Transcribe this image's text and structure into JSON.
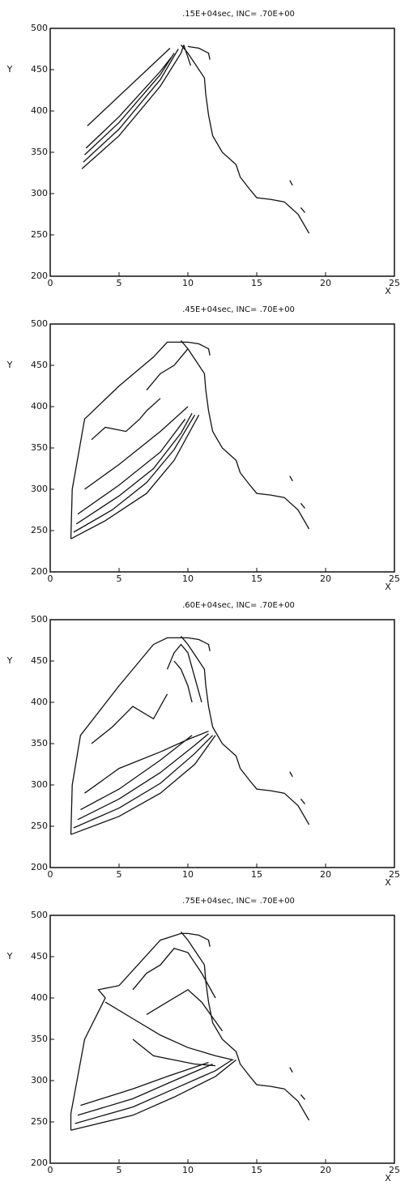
{
  "chart_data": [
    {
      "type": "contour",
      "title": ".15E+04sec,  INC= .70E+00",
      "xlabel": "X",
      "ylabel": "Y",
      "xlim": [
        0,
        25
      ],
      "ylim": [
        200,
        500
      ],
      "xticks": [
        0,
        5,
        10,
        15,
        20,
        25
      ],
      "yticks": [
        200,
        250,
        300,
        350,
        400,
        450,
        500
      ],
      "color": "#111111",
      "lines": [
        {
          "x": [
            9.5,
            10,
            10.6,
            11.2,
            11.3,
            11.5,
            11.8,
            12.5,
            13.5,
            13.8,
            14.5,
            15,
            16,
            17,
            18,
            18.8
          ],
          "y": [
            480,
            470,
            455,
            440,
            420,
            395,
            370,
            350,
            335,
            320,
            305,
            295,
            293,
            290,
            275,
            252
          ]
        },
        {
          "x": [
            10,
            10.8,
            11.5,
            11.6
          ],
          "y": [
            478,
            476,
            470,
            462
          ]
        },
        {
          "x": [
            17.4,
            17.6
          ],
          "y": [
            316,
            310
          ]
        },
        {
          "x": [
            18.2,
            18.5
          ],
          "y": [
            283,
            277
          ]
        },
        {
          "x": [
            2.7,
            8.7
          ],
          "y": [
            382,
            476
          ]
        },
        {
          "x": [
            2.3,
            5,
            8,
            9.5,
            9.7
          ],
          "y": [
            330,
            370,
            430,
            470,
            480
          ]
        },
        {
          "x": [
            2.4,
            5,
            8,
            9.3
          ],
          "y": [
            338,
            378,
            438,
            475
          ]
        },
        {
          "x": [
            2.5,
            5,
            8,
            9
          ],
          "y": [
            347,
            386,
            444,
            470
          ]
        },
        {
          "x": [
            2.6,
            5,
            8,
            8.8
          ],
          "y": [
            355,
            393,
            448,
            465
          ]
        },
        {
          "x": [
            9.7,
            10,
            10.2
          ],
          "y": [
            480,
            465,
            455
          ]
        }
      ]
    },
    {
      "type": "contour",
      "title": ".45E+04sec,  INC= .70E+00",
      "xlabel": "X",
      "ylabel": "Y",
      "xlim": [
        0,
        25
      ],
      "ylim": [
        200,
        500
      ],
      "xticks": [
        0,
        5,
        10,
        15,
        20,
        25
      ],
      "yticks": [
        200,
        250,
        300,
        350,
        400,
        450,
        500
      ],
      "color": "#111111",
      "lines": [
        {
          "x": [
            9.5,
            10,
            10.6,
            11.2,
            11.3,
            11.5,
            11.8,
            12.5,
            13.5,
            13.8,
            14.5,
            15,
            16,
            17,
            18,
            18.8
          ],
          "y": [
            480,
            470,
            455,
            440,
            420,
            395,
            370,
            350,
            335,
            320,
            305,
            295,
            293,
            290,
            275,
            252
          ]
        },
        {
          "x": [
            10,
            10.8,
            11.5,
            11.6
          ],
          "y": [
            478,
            476,
            470,
            462
          ]
        },
        {
          "x": [
            17.4,
            17.6
          ],
          "y": [
            316,
            310
          ]
        },
        {
          "x": [
            18.2,
            18.5
          ],
          "y": [
            283,
            277
          ]
        },
        {
          "x": [
            1.5,
            1.6,
            2.5,
            5,
            7.5,
            8.5,
            10
          ],
          "y": [
            240,
            300,
            385,
            425,
            460,
            478,
            478
          ]
        },
        {
          "x": [
            1.5,
            4,
            7,
            9,
            10.8
          ],
          "y": [
            240,
            262,
            295,
            335,
            390
          ]
        },
        {
          "x": [
            1.7,
            4.5,
            7,
            9,
            10.5
          ],
          "y": [
            248,
            275,
            308,
            348,
            390
          ]
        },
        {
          "x": [
            1.9,
            5,
            7.5,
            9.5,
            10.3
          ],
          "y": [
            258,
            292,
            325,
            368,
            392
          ]
        },
        {
          "x": [
            2,
            5,
            8,
            9.8
          ],
          "y": [
            270,
            305,
            345,
            385
          ]
        },
        {
          "x": [
            2.5,
            5,
            8,
            10
          ],
          "y": [
            300,
            330,
            370,
            400
          ]
        },
        {
          "x": [
            3,
            4,
            5.5,
            6.5,
            7,
            8
          ],
          "y": [
            360,
            375,
            370,
            385,
            395,
            410
          ]
        },
        {
          "x": [
            7,
            8,
            9,
            9.5,
            10
          ],
          "y": [
            420,
            440,
            450,
            460,
            470
          ]
        }
      ]
    },
    {
      "type": "contour",
      "title": ".60E+04sec,  INC= .70E+00",
      "xlabel": "X",
      "ylabel": "Y",
      "xlim": [
        0,
        25
      ],
      "ylim": [
        200,
        500
      ],
      "xticks": [
        0,
        5,
        10,
        15,
        20,
        25
      ],
      "yticks": [
        200,
        250,
        300,
        350,
        400,
        450,
        500
      ],
      "color": "#111111",
      "lines": [
        {
          "x": [
            9.5,
            10,
            10.6,
            11.2,
            11.3,
            11.5,
            11.8,
            12.5,
            13.5,
            13.8,
            14.5,
            15,
            16,
            17,
            18,
            18.8
          ],
          "y": [
            480,
            470,
            455,
            440,
            420,
            395,
            370,
            350,
            335,
            320,
            305,
            295,
            293,
            290,
            275,
            252
          ]
        },
        {
          "x": [
            10,
            10.8,
            11.5,
            11.6
          ],
          "y": [
            478,
            476,
            470,
            462
          ]
        },
        {
          "x": [
            17.4,
            17.6
          ],
          "y": [
            316,
            310
          ]
        },
        {
          "x": [
            18.2,
            18.5
          ],
          "y": [
            283,
            277
          ]
        },
        {
          "x": [
            1.5,
            1.6,
            2.2,
            5,
            7.5,
            8.5,
            10
          ],
          "y": [
            240,
            300,
            360,
            420,
            470,
            478,
            478
          ]
        },
        {
          "x": [
            1.5,
            5,
            8,
            10.5,
            12
          ],
          "y": [
            240,
            262,
            290,
            325,
            360
          ]
        },
        {
          "x": [
            1.7,
            5,
            8,
            10.5,
            11.8
          ],
          "y": [
            248,
            272,
            302,
            338,
            360
          ]
        },
        {
          "x": [
            2,
            5,
            8,
            10.5,
            11.5
          ],
          "y": [
            258,
            283,
            315,
            348,
            362
          ]
        },
        {
          "x": [
            2.2,
            5,
            8,
            10.3
          ],
          "y": [
            270,
            295,
            330,
            360
          ]
        },
        {
          "x": [
            2.5,
            5,
            8,
            10,
            11.5
          ],
          "y": [
            290,
            320,
            340,
            355,
            365
          ]
        },
        {
          "x": [
            3,
            4.5,
            6,
            7.5,
            8.5
          ],
          "y": [
            350,
            370,
            395,
            380,
            410
          ]
        },
        {
          "x": [
            8.5,
            9,
            9.5,
            10,
            10.5,
            11
          ],
          "y": [
            440,
            460,
            470,
            460,
            430,
            400
          ]
        },
        {
          "x": [
            9,
            9.5,
            10,
            10.3
          ],
          "y": [
            450,
            440,
            420,
            400
          ]
        }
      ]
    },
    {
      "type": "contour",
      "title": ".75E+04sec,  INC= .70E+00",
      "xlabel": "X",
      "ylabel": "Y",
      "xlim": [
        0,
        25
      ],
      "ylim": [
        200,
        500
      ],
      "xticks": [
        0,
        5,
        10,
        15,
        20,
        25
      ],
      "yticks": [
        200,
        250,
        300,
        350,
        400,
        450,
        500
      ],
      "color": "#111111",
      "lines": [
        {
          "x": [
            9.5,
            10,
            10.6,
            11.2,
            11.3,
            11.5,
            11.8,
            12.5,
            13.5,
            13.8,
            14.5,
            15,
            16,
            17,
            18,
            18.8
          ],
          "y": [
            480,
            470,
            455,
            440,
            420,
            395,
            370,
            350,
            335,
            320,
            305,
            295,
            293,
            290,
            275,
            252
          ]
        },
        {
          "x": [
            10,
            10.8,
            11.5,
            11.6
          ],
          "y": [
            478,
            476,
            470,
            462
          ]
        },
        {
          "x": [
            17.4,
            17.6
          ],
          "y": [
            316,
            310
          ]
        },
        {
          "x": [
            18.2,
            18.5
          ],
          "y": [
            283,
            277
          ]
        },
        {
          "x": [
            1.5,
            1.5,
            2.5,
            4,
            3.5,
            5,
            8,
            9.5,
            10
          ],
          "y": [
            240,
            260,
            350,
            400,
            410,
            415,
            470,
            478,
            478
          ]
        },
        {
          "x": [
            4,
            6,
            8,
            10,
            12,
            13.3
          ],
          "y": [
            395,
            375,
            355,
            340,
            330,
            325
          ]
        },
        {
          "x": [
            1.5,
            6,
            9,
            12,
            13.5
          ],
          "y": [
            240,
            258,
            280,
            305,
            325
          ]
        },
        {
          "x": [
            1.8,
            6,
            9,
            12,
            13.2
          ],
          "y": [
            248,
            268,
            290,
            312,
            325
          ]
        },
        {
          "x": [
            2,
            6,
            9,
            11.8
          ],
          "y": [
            258,
            278,
            300,
            320
          ]
        },
        {
          "x": [
            2.2,
            6,
            8.5,
            11.5
          ],
          "y": [
            270,
            290,
            305,
            322
          ]
        },
        {
          "x": [
            6,
            7.5,
            9,
            10.5,
            12
          ],
          "y": [
            350,
            330,
            325,
            320,
            318
          ]
        },
        {
          "x": [
            6,
            7,
            8,
            9,
            10,
            11,
            12
          ],
          "y": [
            410,
            430,
            440,
            460,
            455,
            430,
            400
          ]
        },
        {
          "x": [
            7,
            8.5,
            10,
            11,
            12.5
          ],
          "y": [
            380,
            395,
            410,
            395,
            360
          ]
        }
      ]
    }
  ]
}
